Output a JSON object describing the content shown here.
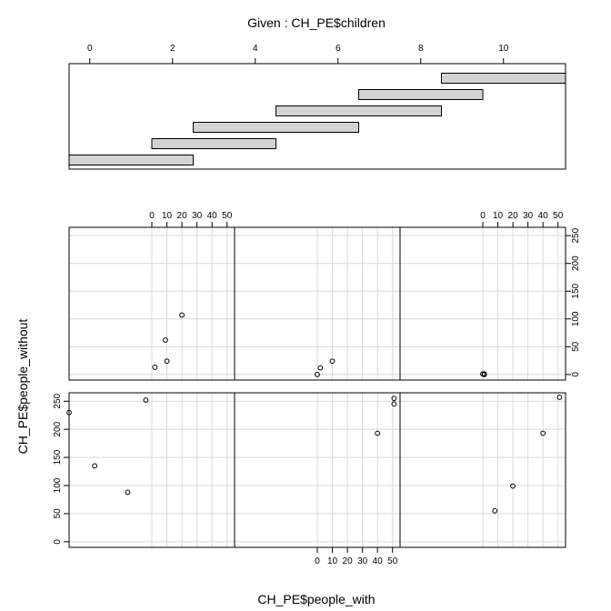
{
  "chart_data": {
    "type": "coplot",
    "title": "Given : CH_PE$children",
    "xlabel": "CH_PE$people_with",
    "ylabel": "CH_PE$people_without",
    "given": {
      "variable": "CH_PE$children",
      "axis_ticks": [
        0,
        2,
        4,
        6,
        8,
        10
      ],
      "range": [
        -0.5,
        11.5
      ],
      "intervals": [
        [
          -0.5,
          2.5
        ],
        [
          1.5,
          4.5
        ],
        [
          2.5,
          6.5
        ],
        [
          4.5,
          8.5
        ],
        [
          6.5,
          9.5
        ],
        [
          8.5,
          11.5
        ]
      ]
    },
    "panel_axes": {
      "xlim": [
        -55,
        55
      ],
      "ylim": [
        -10,
        265
      ],
      "x_ticks": [
        0,
        10,
        20,
        30,
        40,
        50
      ],
      "y_ticks": [
        0,
        50,
        100,
        150,
        200,
        250
      ]
    },
    "panels": [
      {
        "row": 2,
        "col": 1,
        "points": [
          [
            -55,
            230
          ],
          [
            -38,
            135
          ],
          [
            -16,
            88
          ],
          [
            -4,
            252
          ]
        ]
      },
      {
        "row": 2,
        "col": 2,
        "points": [
          [
            40,
            193
          ],
          [
            51,
            245
          ],
          [
            51,
            255
          ]
        ]
      },
      {
        "row": 2,
        "col": 3,
        "points": [
          [
            8,
            55
          ],
          [
            20,
            99
          ],
          [
            40,
            193
          ],
          [
            51,
            257
          ]
        ]
      },
      {
        "row": 1,
        "col": 1,
        "points": [
          [
            2,
            13
          ],
          [
            10,
            24
          ],
          [
            9,
            62
          ],
          [
            20,
            107
          ]
        ]
      },
      {
        "row": 1,
        "col": 2,
        "points": [
          [
            0,
            0
          ],
          [
            2,
            12
          ],
          [
            10,
            24
          ]
        ]
      },
      {
        "row": 1,
        "col": 3,
        "points": [
          [
            0,
            1
          ],
          [
            1,
            0
          ],
          [
            1,
            1
          ]
        ]
      }
    ]
  }
}
